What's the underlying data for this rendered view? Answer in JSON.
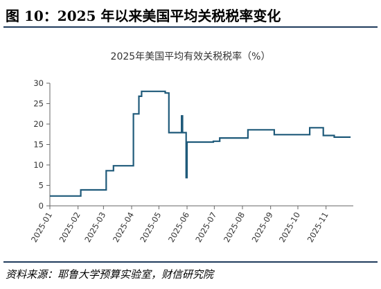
{
  "header": {
    "figure_title": "图 10：2025 年以来美国平均关税税率变化"
  },
  "source": {
    "text": "资料来源：耶鲁大学预算实验室，财信研究院"
  },
  "chart_data": {
    "type": "line",
    "title": "2025年美国平均有效关税税率（%）",
    "xlabel": "",
    "ylabel": "",
    "ylim": [
      0,
      30
    ],
    "yticks": [
      0,
      5,
      10,
      15,
      20,
      25,
      30
    ],
    "xlim": [
      "2025-01-01",
      "2025-12-01"
    ],
    "xticks": [
      "2025-01",
      "2025-02",
      "2025-03",
      "2025-04",
      "2025-05",
      "2025-06",
      "2025-07",
      "2025-08",
      "2025-09",
      "2025-10",
      "2025-11"
    ],
    "grid": false,
    "legend": "none",
    "line_color": "#1f5a7a",
    "series": [
      {
        "step": true,
        "points": [
          {
            "x": "2025-01-01",
            "y": 2.4
          },
          {
            "x": "2025-02-04",
            "y": 3.9
          },
          {
            "x": "2025-03-04",
            "y": 8.6
          },
          {
            "x": "2025-03-12",
            "y": 9.8
          },
          {
            "x": "2025-04-03",
            "y": 22.5
          },
          {
            "x": "2025-04-09",
            "y": 26.8
          },
          {
            "x": "2025-04-12",
            "y": 28.0
          },
          {
            "x": "2025-05-08",
            "y": 27.6
          },
          {
            "x": "2025-05-12",
            "y": 17.9
          },
          {
            "x": "2025-05-23",
            "y": 17.9
          },
          {
            "x": "2025-05-26",
            "y": 22.0
          },
          {
            "x": "2025-05-27",
            "y": 17.9
          },
          {
            "x": "2025-05-29",
            "y": 17.9
          },
          {
            "x": "2025-05-31",
            "y": 6.9
          },
          {
            "x": "2025-06-01",
            "y": 15.6
          },
          {
            "x": "2025-06-30",
            "y": 15.8
          },
          {
            "x": "2025-07-07",
            "y": 16.6
          },
          {
            "x": "2025-08-07",
            "y": 18.6
          },
          {
            "x": "2025-09-05",
            "y": 17.4
          },
          {
            "x": "2025-10-14",
            "y": 19.1
          },
          {
            "x": "2025-10-29",
            "y": 17.2
          },
          {
            "x": "2025-11-10",
            "y": 16.8
          },
          {
            "x": "2025-11-28",
            "y": 16.8
          }
        ]
      }
    ]
  }
}
